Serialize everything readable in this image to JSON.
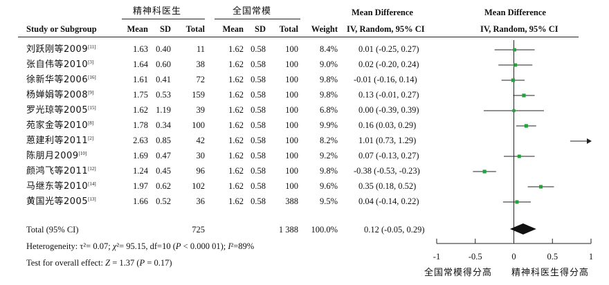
{
  "header": {
    "group1": "精神科医生",
    "group2": "全国常模",
    "col_study": "Study or Subgroup",
    "col_mean1": "Mean",
    "col_sd1": "SD",
    "col_total1": "Total",
    "col_mean2": "Mean",
    "col_sd2": "SD",
    "col_total2": "Total",
    "col_weight": "Weight",
    "md_title": "Mean Difference",
    "md_sub": "IV, Random, 95% CI",
    "plot_title": "Mean Difference",
    "plot_sub": "IV, Random, 95% CI"
  },
  "studies": [
    {
      "name": "刘跃刚等2009",
      "ref": "[11]",
      "mean1": "1.63",
      "sd1": "0.40",
      "total1": "11",
      "mean2": "1.62",
      "sd2": "0.58",
      "total2": "100",
      "weight": "8.4%",
      "ci": "0.01 (-0.25, 0.27)"
    },
    {
      "name": "张自伟等2010",
      "ref": "[3]",
      "mean1": "1.64",
      "sd1": "0.60",
      "total1": "38",
      "mean2": "1.62",
      "sd2": "0.58",
      "total2": "100",
      "weight": "9.0%",
      "ci": "0.02 (-0.20, 0.24)"
    },
    {
      "name": "徐新华等2006",
      "ref": "[16]",
      "mean1": "1.61",
      "sd1": "0.41",
      "total1": "72",
      "mean2": "1.62",
      "sd2": "0.58",
      "total2": "100",
      "weight": "9.8%",
      "ci": "-0.01 (-0.16, 0.14)"
    },
    {
      "name": "杨婵娟等2008",
      "ref": "[9]",
      "mean1": "1.75",
      "sd1": "0.53",
      "total1": "159",
      "mean2": "1.62",
      "sd2": "0.58",
      "total2": "100",
      "weight": "9.8%",
      "ci": "0.13 (-0.01, 0.27)"
    },
    {
      "name": "罗光琼等2005",
      "ref": "[15]",
      "mean1": "1.62",
      "sd1": "1.19",
      "total1": "39",
      "mean2": "1.62",
      "sd2": "0.58",
      "total2": "100",
      "weight": "6.8%",
      "ci": "0.00 (-0.39, 0.39)"
    },
    {
      "name": "苑家金等2010",
      "ref": "[8]",
      "mean1": "1.78",
      "sd1": "0.34",
      "total1": "100",
      "mean2": "1.62",
      "sd2": "0.58",
      "total2": "100",
      "weight": "9.9%",
      "ci": "0.16 (0.03, 0.29)"
    },
    {
      "name": "蒽建利等2011",
      "ref": "[2]",
      "mean1": "2.63",
      "sd1": "0.85",
      "total1": "42",
      "mean2": "1.62",
      "sd2": "0.58",
      "total2": "100",
      "weight": "8.2%",
      "ci": "1.01 (0.73, 1.29)"
    },
    {
      "name": "陈朋月2009",
      "ref": "[10]",
      "mean1": "1.69",
      "sd1": "0.47",
      "total1": "30",
      "mean2": "1.62",
      "sd2": "0.58",
      "total2": "100",
      "weight": "9.2%",
      "ci": "0.07 (-0.13, 0.27)"
    },
    {
      "name": "颜鸿飞等2011",
      "ref": "[12]",
      "mean1": "1.24",
      "sd1": "0.45",
      "total1": "96",
      "mean2": "1.62",
      "sd2": "0.58",
      "total2": "100",
      "weight": "9.8%",
      "ci": "-0.38 (-0.53, -0.23)"
    },
    {
      "name": "马继东等2010",
      "ref": "[14]",
      "mean1": "1.97",
      "sd1": "0.62",
      "total1": "102",
      "mean2": "1.62",
      "sd2": "0.58",
      "total2": "100",
      "weight": "9.6%",
      "ci": "0.35 (0.18, 0.52)"
    },
    {
      "name": "黄国光等2005",
      "ref": "[13]",
      "mean1": "1.66",
      "sd1": "0.52",
      "total1": "36",
      "mean2": "1.62",
      "sd2": "0.58",
      "total2": "388",
      "weight": "9.5%",
      "ci": "0.04 (-0.14, 0.22)"
    }
  ],
  "total": {
    "label": "Total (95% CI)",
    "total1": "725",
    "total2": "1 388",
    "weight": "100.0%",
    "ci": "0.12 (-0.05, 0.29)"
  },
  "footer": {
    "heterogeneity": "Heterogeneity:  τ²= 0.07;  χ²= 95.15, df=10 (P < 0.000 01); I²=89%",
    "overall": "Test for overall effect: Z = 1.37 (P = 0.17)",
    "favours_left": "全国常模得分高",
    "favours_right": "精神科医生得分高"
  },
  "colors": {
    "marker": "#22a33a",
    "diamond": "#111111",
    "line": "#222222"
  },
  "chart_data": {
    "type": "forest",
    "xlim": [
      -1,
      1
    ],
    "ticks": [
      "-1",
      "-0.5",
      "0",
      "0.5",
      "1"
    ],
    "tick_values": [
      -1,
      -0.5,
      0,
      0.5,
      1
    ],
    "estimates": [
      {
        "est": 0.01,
        "lo": -0.25,
        "hi": 0.27,
        "weight": 8.4
      },
      {
        "est": 0.02,
        "lo": -0.2,
        "hi": 0.24,
        "weight": 9.0
      },
      {
        "est": -0.01,
        "lo": -0.16,
        "hi": 0.14,
        "weight": 9.8
      },
      {
        "est": 0.13,
        "lo": -0.01,
        "hi": 0.27,
        "weight": 9.8
      },
      {
        "est": 0.0,
        "lo": -0.39,
        "hi": 0.39,
        "weight": 6.8
      },
      {
        "est": 0.16,
        "lo": 0.03,
        "hi": 0.29,
        "weight": 9.9
      },
      {
        "est": 1.01,
        "lo": 0.73,
        "hi": 1.29,
        "weight": 8.2
      },
      {
        "est": 0.07,
        "lo": -0.13,
        "hi": 0.27,
        "weight": 9.2
      },
      {
        "est": -0.38,
        "lo": -0.53,
        "hi": -0.23,
        "weight": 9.8
      },
      {
        "est": 0.35,
        "lo": 0.18,
        "hi": 0.52,
        "weight": 9.6
      },
      {
        "est": 0.04,
        "lo": -0.14,
        "hi": 0.22,
        "weight": 9.5
      }
    ],
    "pooled": {
      "est": 0.12,
      "lo": -0.05,
      "hi": 0.29
    }
  }
}
